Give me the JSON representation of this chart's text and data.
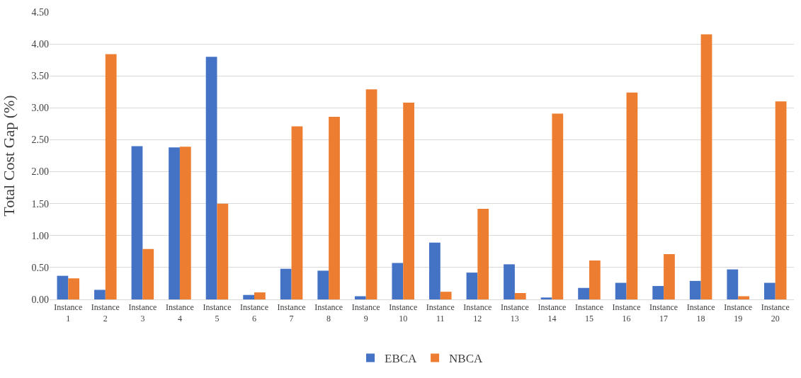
{
  "chart_data": {
    "type": "bar",
    "ylabel": "Total Cost Gap (%)",
    "categories": [
      "Instance 1",
      "Instance 2",
      "Instance 3",
      "Instance 4",
      "Instance 5",
      "Instance 6",
      "Instance 7",
      "Instance 8",
      "Instance 9",
      "Instance 10",
      "Instance 11",
      "Instance 12",
      "Instance 13",
      "Instance 14",
      "Instance 15",
      "Instance 16",
      "Instance 17",
      "Instance 18",
      "Instance 19",
      "Instance 20"
    ],
    "series": [
      {
        "name": "EBCA",
        "color": "#4472c4",
        "values": [
          0.37,
          0.15,
          2.4,
          2.38,
          3.8,
          0.07,
          0.48,
          0.45,
          0.05,
          0.57,
          0.89,
          0.42,
          0.55,
          0.03,
          0.18,
          0.26,
          0.21,
          0.29,
          0.47,
          0.26
        ]
      },
      {
        "name": "NBCA",
        "color": "#ed7d31",
        "values": [
          0.33,
          3.84,
          0.79,
          2.39,
          1.5,
          0.11,
          2.71,
          2.86,
          3.29,
          3.08,
          0.12,
          1.42,
          0.1,
          2.91,
          0.61,
          3.24,
          0.71,
          4.15,
          0.05,
          3.1
        ]
      }
    ],
    "ylim": [
      0,
      4.5
    ],
    "yticks": [
      {
        "value": 0,
        "label": "0.00"
      },
      {
        "value": 0.5,
        "label": "0.50"
      },
      {
        "value": 1,
        "label": "1.00"
      },
      {
        "value": 1.5,
        "label": "1.50"
      },
      {
        "value": 2,
        "label": "2.00"
      },
      {
        "value": 2.5,
        "label": "2.50"
      },
      {
        "value": 3,
        "label": "3.00"
      },
      {
        "value": 3.5,
        "label": "3.50"
      },
      {
        "value": 4,
        "label": "4.00"
      },
      {
        "value": 4.5,
        "label": "4.50"
      }
    ],
    "grid": "y",
    "legend": "bottom"
  }
}
